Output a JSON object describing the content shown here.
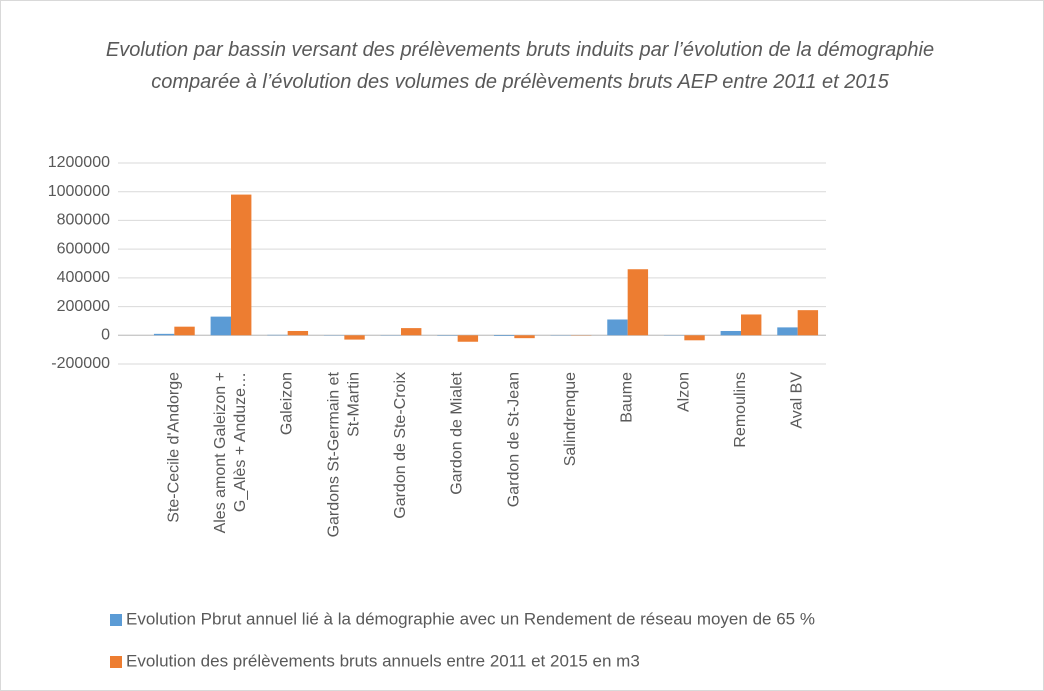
{
  "chart_data": {
    "type": "bar",
    "title": "Evolution par bassin versant des prélèvements bruts induits par l’évolution de la démographie comparée à l’évolution des volumes de prélèvements bruts AEP entre 2011 et 2015",
    "categories": [
      "Ste-Cecile d'Andorge",
      "Ales amont Galeizon + G_Alès + Anduze…",
      "Galeizon",
      "Gardons St-Germain et St-Martin",
      "Gardon de Ste-Croix",
      "Gardon de Mialet",
      "Gardon de St-Jean",
      "Salindrenque",
      "Baume",
      "Alzon",
      "Remoulins",
      "Aval BV"
    ],
    "series": [
      {
        "name": "Evolution Pbrut annuel lié à la démographie avec un Rendement de réseau moyen de 65 %",
        "color": "#5b9bd5",
        "values": [
          10000,
          130000,
          3000,
          2000,
          2000,
          -3000,
          -5000,
          2000,
          110000,
          2000,
          30000,
          55000
        ]
      },
      {
        "name": "Evolution des prélèvements bruts annuels entre 2011 et 2015 en m3",
        "color": "#ed7d31",
        "values": [
          60000,
          980000,
          30000,
          -30000,
          50000,
          -45000,
          -20000,
          -2000,
          460000,
          -35000,
          145000,
          175000
        ]
      }
    ],
    "ylim": [
      -200000,
      1200000
    ],
    "yticks": [
      -200000,
      0,
      200000,
      400000,
      600000,
      800000,
      1000000,
      1200000
    ],
    "grid": true
  }
}
